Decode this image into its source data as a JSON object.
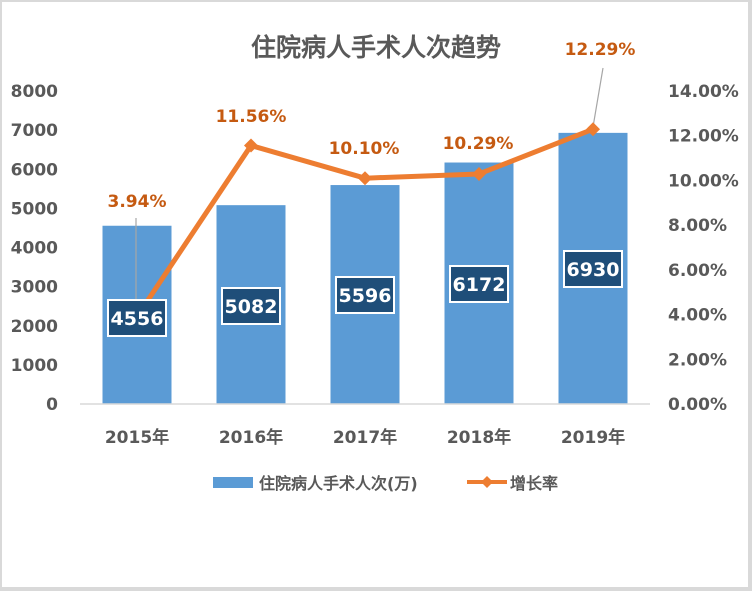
{
  "chart_data": {
    "type": "bar+line",
    "title": "住院病人手术人次趋势",
    "categories": [
      "2015年",
      "2016年",
      "2017年",
      "2018年",
      "2019年"
    ],
    "series": [
      {
        "name": "住院病人手术人次(万)",
        "type": "bar",
        "axis": "left",
        "color": "#5b9bd5",
        "values": [
          4556,
          5082,
          5596,
          6172,
          6930
        ],
        "labels": [
          "4556",
          "5082",
          "5596",
          "6172",
          "6930"
        ]
      },
      {
        "name": "增长率",
        "type": "line",
        "axis": "right",
        "color": "#ed7d31",
        "marker": "diamond",
        "values": [
          3.94,
          11.56,
          10.1,
          10.29,
          12.29
        ],
        "labels": [
          "3.94%",
          "11.56%",
          "10.10%",
          "10.29%",
          "12.29%"
        ]
      }
    ],
    "y_left": {
      "ticks": [
        "0",
        "1000",
        "2000",
        "3000",
        "4000",
        "5000",
        "6000",
        "7000",
        "8000"
      ],
      "ylim": [
        0,
        8000
      ]
    },
    "y_right": {
      "ticks": [
        "0.00%",
        "2.00%",
        "4.00%",
        "6.00%",
        "8.00%",
        "10.00%",
        "12.00%",
        "14.00%"
      ],
      "ylim": [
        0,
        14
      ]
    },
    "xlabel": "",
    "ylabel": "",
    "grid": false,
    "legend_position": "bottom"
  },
  "colors": {
    "bar": "#5b9bd5",
    "line": "#ed7d31",
    "line_label": "#c55a11",
    "label_box": "#1f4e79",
    "axis_text": "#595959",
    "leader": "#a6a6a6"
  }
}
